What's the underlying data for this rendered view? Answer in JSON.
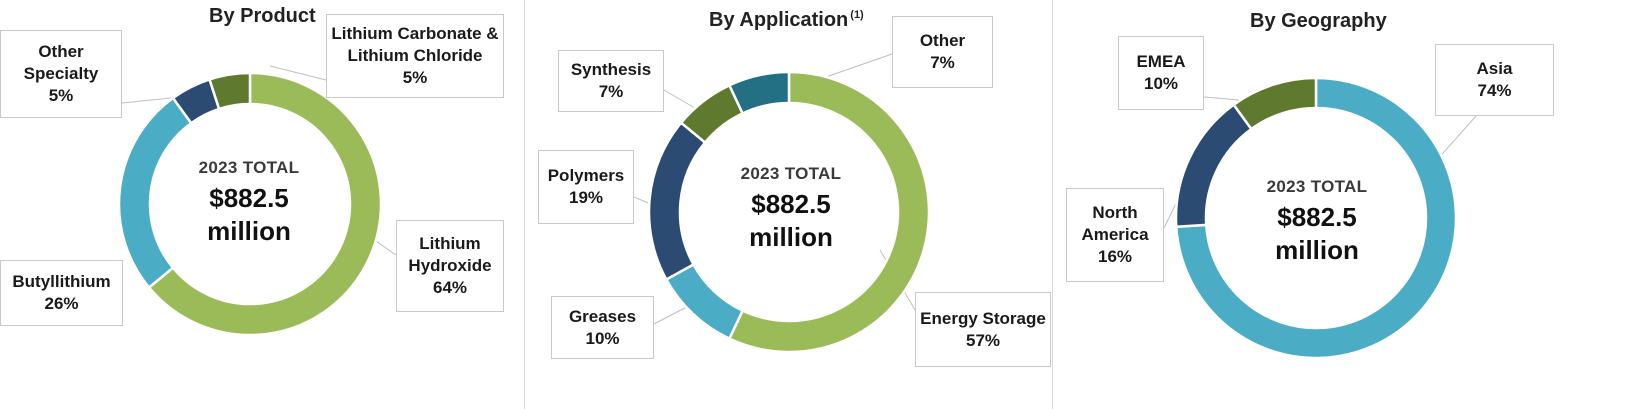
{
  "colors": {
    "green": "#9bbb59",
    "lightblue": "#4bacc6",
    "navy": "#2c4b73",
    "darkgreen": "#5f7a2e",
    "teal": "#236f84"
  },
  "chart_data": [
    {
      "type": "pie",
      "variant": "donut",
      "title": "By Product",
      "center_caption": "2023 TOTAL",
      "center_amount_line1": "$882.5",
      "center_amount_line2": "million",
      "slices": [
        {
          "label_lines": [
            "Lithium",
            "Hydroxide"
          ],
          "label": "Lithium Hydroxide",
          "value": 64,
          "pct": "64%",
          "color": "#9bbb59"
        },
        {
          "label_lines": [
            "Butyllithium"
          ],
          "label": "Butyllithium",
          "value": 26,
          "pct": "26%",
          "color": "#4bacc6"
        },
        {
          "label_lines": [
            "Other",
            "Specialty"
          ],
          "label": "Other Specialty",
          "value": 5,
          "pct": "5%",
          "color": "#2c4b73"
        },
        {
          "label_lines": [
            "Lithium Carbonate &",
            "Lithium Chloride"
          ],
          "label": "Lithium Carbonate & Lithium Chloride",
          "value": 5,
          "pct": "5%",
          "color": "#5f7a2e"
        }
      ]
    },
    {
      "type": "pie",
      "variant": "donut",
      "title": "By Application",
      "title_note": "(1)",
      "center_caption": "2023 TOTAL",
      "center_amount_line1": "$882.5",
      "center_amount_line2": "million",
      "slices": [
        {
          "label_lines": [
            "Energy Storage"
          ],
          "label": "Energy Storage",
          "value": 57,
          "pct": "57%",
          "color": "#9bbb59"
        },
        {
          "label_lines": [
            "Greases"
          ],
          "label": "Greases",
          "value": 10,
          "pct": "10%",
          "color": "#4bacc6"
        },
        {
          "label_lines": [
            "Polymers"
          ],
          "label": "Polymers",
          "value": 19,
          "pct": "19%",
          "color": "#2c4b73"
        },
        {
          "label_lines": [
            "Synthesis"
          ],
          "label": "Synthesis",
          "value": 7,
          "pct": "7%",
          "color": "#5f7a2e"
        },
        {
          "label_lines": [
            "Other"
          ],
          "label": "Other",
          "value": 7,
          "pct": "7%",
          "color": "#236f84"
        }
      ]
    },
    {
      "type": "pie",
      "variant": "donut",
      "title": "By Geography",
      "center_caption": "2023 TOTAL",
      "center_amount_line1": "$882.5",
      "center_amount_line2": "million",
      "slices": [
        {
          "label_lines": [
            "Asia"
          ],
          "label": "Asia",
          "value": 74,
          "pct": "74%",
          "color": "#4bacc6"
        },
        {
          "label_lines": [
            "North",
            "America"
          ],
          "label": "North America",
          "value": 16,
          "pct": "16%",
          "color": "#2c4b73"
        },
        {
          "label_lines": [
            "EMEA"
          ],
          "label": "EMEA",
          "value": 10,
          "pct": "10%",
          "color": "#5f7a2e"
        }
      ]
    }
  ]
}
